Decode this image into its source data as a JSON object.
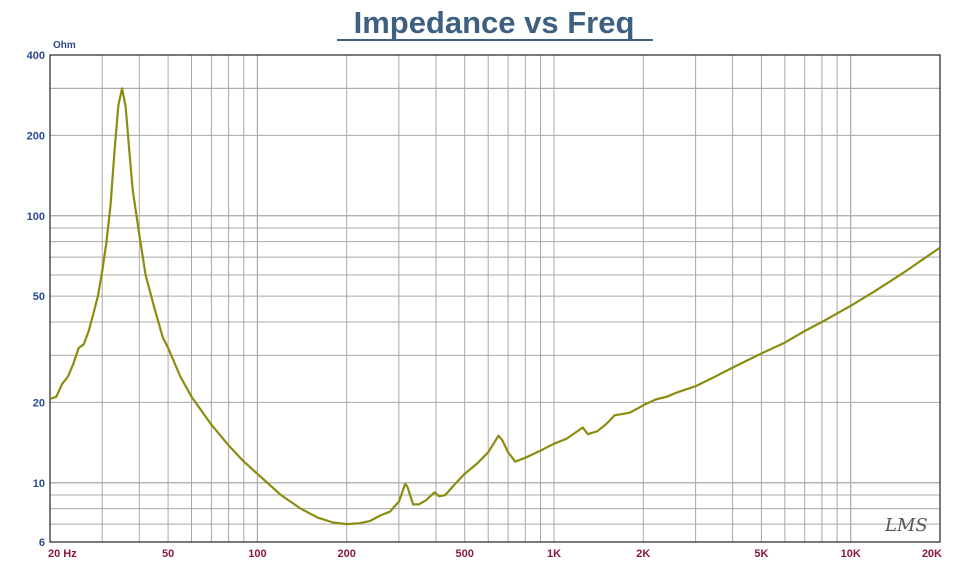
{
  "chart_data": {
    "type": "line",
    "title": "Impedance vs Freq",
    "ylabel": "Ohm",
    "xlabel": "",
    "x_scale": "log",
    "y_scale": "log",
    "xlim": [
      20,
      20000
    ],
    "ylim": [
      6,
      400
    ],
    "grid": true,
    "x_ticks": [
      {
        "value": 20,
        "label": "20  Hz"
      },
      {
        "value": 50,
        "label": "50"
      },
      {
        "value": 100,
        "label": "100"
      },
      {
        "value": 200,
        "label": "200"
      },
      {
        "value": 500,
        "label": "500"
      },
      {
        "value": 1000,
        "label": "1K"
      },
      {
        "value": 2000,
        "label": "2K"
      },
      {
        "value": 5000,
        "label": "5K"
      },
      {
        "value": 10000,
        "label": "10K"
      },
      {
        "value": 20000,
        "label": "20K"
      }
    ],
    "y_ticks": [
      {
        "value": 400,
        "label": "400"
      },
      {
        "value": 200,
        "label": "200"
      },
      {
        "value": 100,
        "label": "100"
      },
      {
        "value": 50,
        "label": "50"
      },
      {
        "value": 20,
        "label": "20"
      },
      {
        "value": 10,
        "label": "10"
      },
      {
        "value": 6,
        "label": "6"
      }
    ],
    "series": [
      {
        "color": "#8c8c10",
        "points": [
          [
            20,
            20.6
          ],
          [
            21,
            21
          ],
          [
            22,
            23.5
          ],
          [
            23,
            25
          ],
          [
            24,
            28
          ],
          [
            25,
            32
          ],
          [
            26,
            33
          ],
          [
            27,
            37
          ],
          [
            28,
            43
          ],
          [
            29,
            50
          ],
          [
            30,
            62
          ],
          [
            31,
            80
          ],
          [
            32,
            110
          ],
          [
            33,
            175
          ],
          [
            34,
            260
          ],
          [
            35,
            300
          ],
          [
            36,
            255
          ],
          [
            37,
            175
          ],
          [
            38,
            125
          ],
          [
            40,
            85
          ],
          [
            42,
            60
          ],
          [
            45,
            45
          ],
          [
            48,
            35
          ],
          [
            50,
            32
          ],
          [
            55,
            25
          ],
          [
            60,
            21
          ],
          [
            70,
            16.5
          ],
          [
            80,
            13.8
          ],
          [
            90,
            12
          ],
          [
            100,
            10.8
          ],
          [
            120,
            9.0
          ],
          [
            140,
            8.0
          ],
          [
            160,
            7.4
          ],
          [
            180,
            7.1
          ],
          [
            200,
            7.0
          ],
          [
            220,
            7.05
          ],
          [
            240,
            7.2
          ],
          [
            260,
            7.55
          ],
          [
            280,
            7.8
          ],
          [
            300,
            8.5
          ],
          [
            315,
            9.9
          ],
          [
            320,
            9.7
          ],
          [
            335,
            8.3
          ],
          [
            350,
            8.3
          ],
          [
            370,
            8.6
          ],
          [
            395,
            9.2
          ],
          [
            410,
            8.9
          ],
          [
            430,
            9.0
          ],
          [
            460,
            9.8
          ],
          [
            500,
            10.8
          ],
          [
            550,
            11.8
          ],
          [
            600,
            13.0
          ],
          [
            650,
            15.0
          ],
          [
            670,
            14.4
          ],
          [
            700,
            13.0
          ],
          [
            740,
            12.0
          ],
          [
            800,
            12.4
          ],
          [
            900,
            13.2
          ],
          [
            1000,
            14.0
          ],
          [
            1100,
            14.6
          ],
          [
            1250,
            16.1
          ],
          [
            1300,
            15.2
          ],
          [
            1400,
            15.6
          ],
          [
            1500,
            16.6
          ],
          [
            1600,
            17.9
          ],
          [
            1800,
            18.3
          ],
          [
            2000,
            19.5
          ],
          [
            2200,
            20.5
          ],
          [
            2400,
            21.0
          ],
          [
            2600,
            21.8
          ],
          [
            3000,
            23.0
          ],
          [
            3500,
            25.0
          ],
          [
            4000,
            27.0
          ],
          [
            5000,
            30.5
          ],
          [
            6000,
            33.5
          ],
          [
            7000,
            37
          ],
          [
            8000,
            40
          ],
          [
            10000,
            46
          ],
          [
            12000,
            52
          ],
          [
            15000,
            61
          ],
          [
            20000,
            76
          ]
        ]
      }
    ]
  },
  "logo": "LMS"
}
